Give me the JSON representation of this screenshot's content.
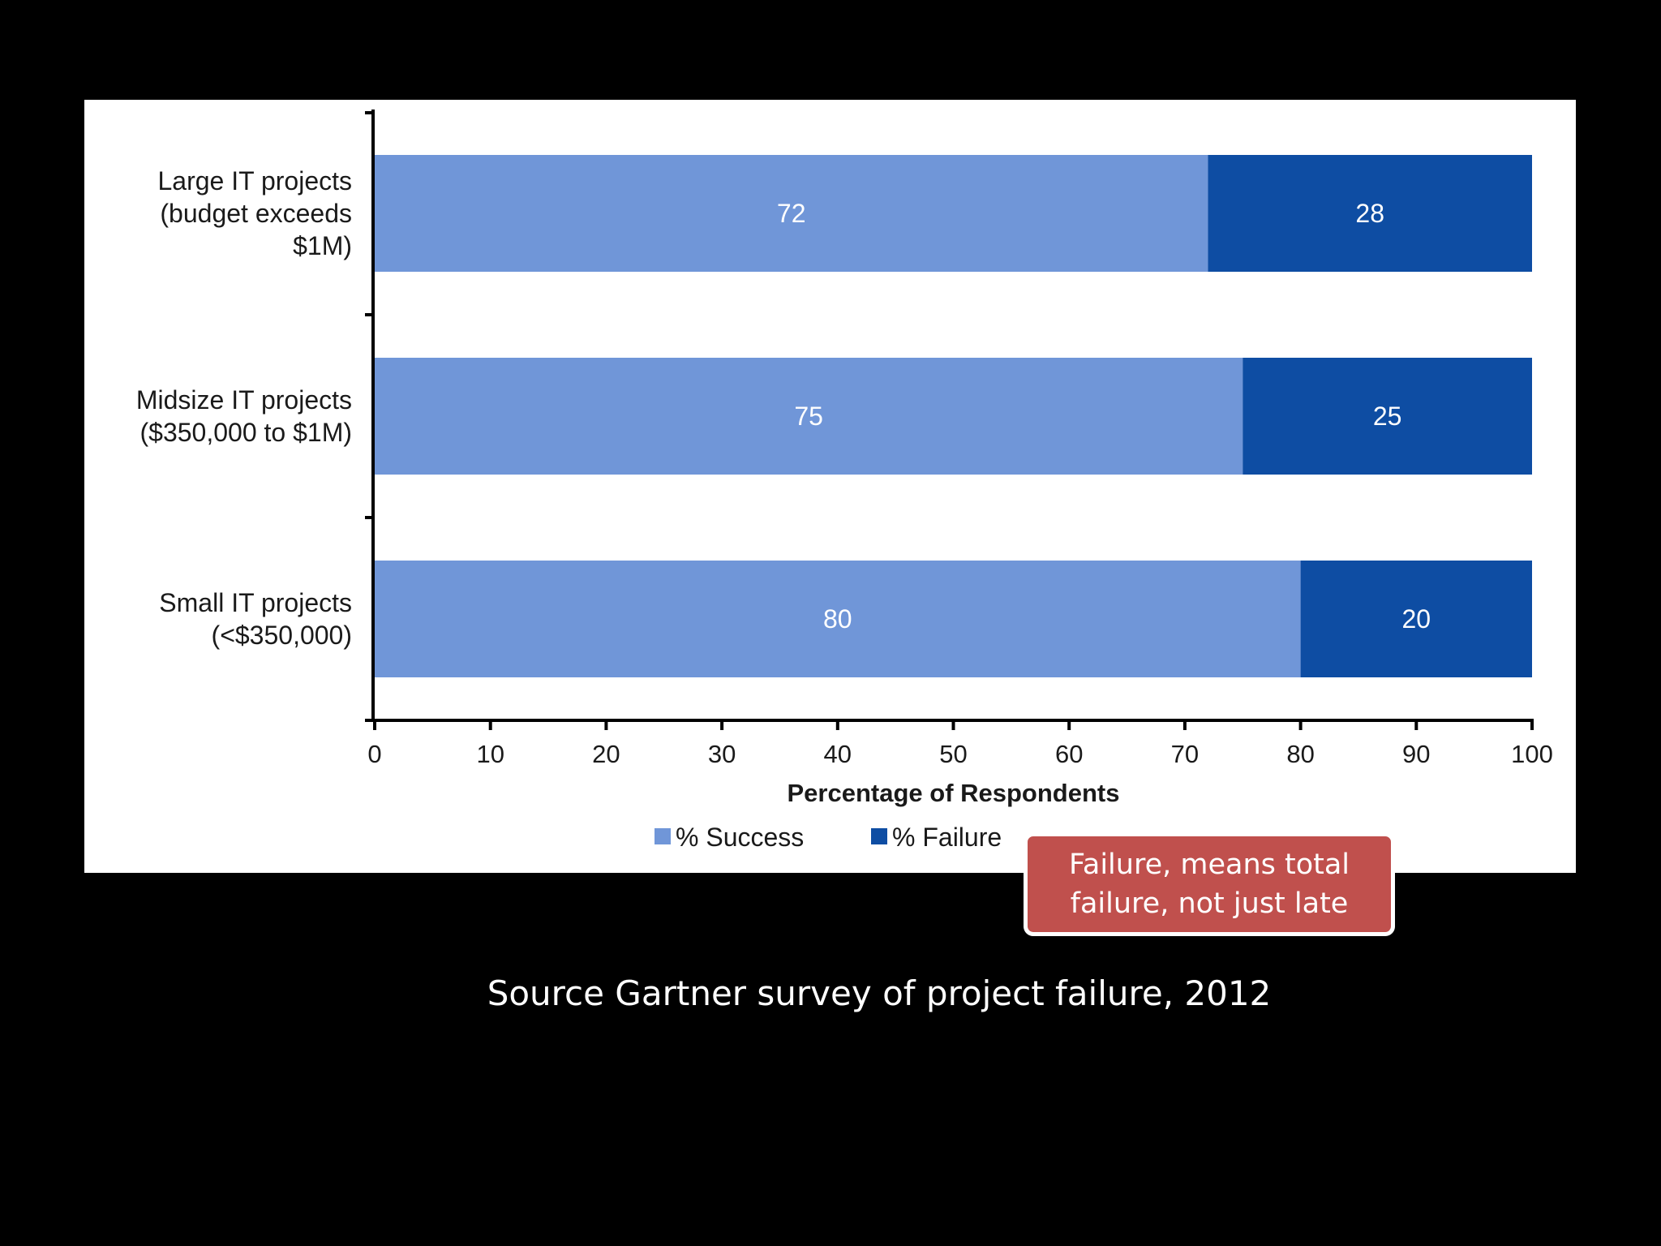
{
  "chart_data": {
    "type": "bar",
    "orientation": "horizontal",
    "stacked": true,
    "categories": [
      [
        "Large IT projects",
        "(budget exceeds",
        "$1M)"
      ],
      [
        "Midsize IT projects",
        "($350,000 to $1M)"
      ],
      [
        "Small IT projects",
        "(<$350,000)"
      ]
    ],
    "series": [
      {
        "name": "% Success",
        "color": "#7096d8",
        "values": [
          72,
          75,
          80
        ]
      },
      {
        "name": "% Failure",
        "color": "#0e4da3",
        "values": [
          28,
          25,
          20
        ]
      }
    ],
    "xlabel": "Percentage of Respondents",
    "xlim": [
      0,
      100
    ],
    "xticks": [
      "0",
      "10",
      "20",
      "30",
      "40",
      "50",
      "60",
      "70",
      "80",
      "90",
      "100"
    ],
    "grid": false,
    "legend_position": "bottom"
  },
  "callout": {
    "text": "Failure, means total failure, not just late",
    "color": "#c0504d"
  },
  "caption": "Source Gartner survey of project failure, 2012"
}
